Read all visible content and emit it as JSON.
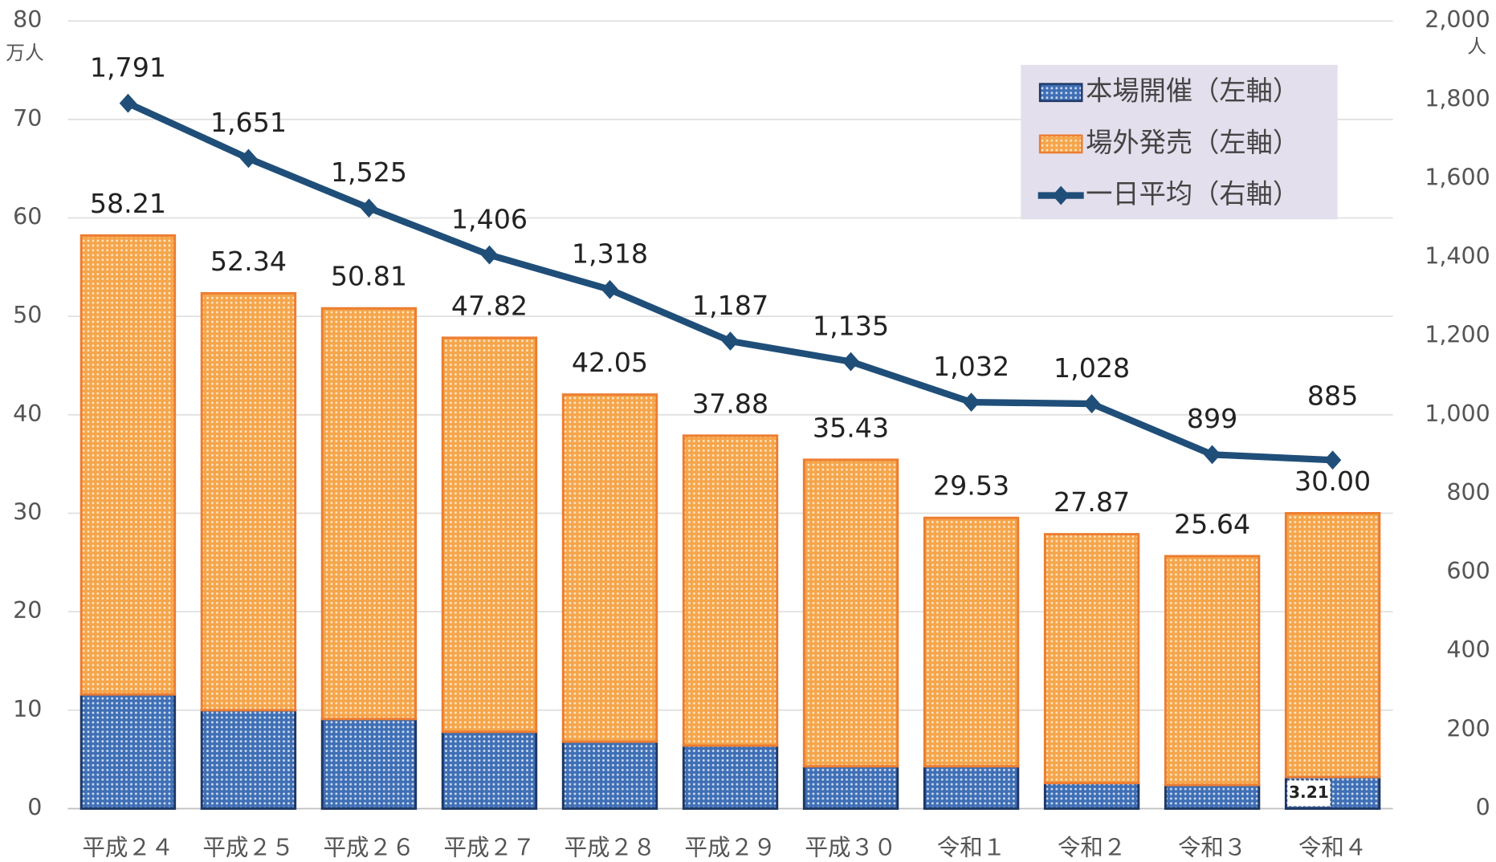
{
  "chart_data": {
    "type": "bar-line",
    "y_unit": "万人",
    "y2_unit": "人",
    "categories": [
      "平成２４",
      "平成２５",
      "平成２６",
      "平成２７",
      "平成２８",
      "平成２９",
      "平成３０",
      "令和１",
      "令和２",
      "令和３",
      "令和４"
    ],
    "series": [
      {
        "name": "本場開催（左軸）",
        "color": "#3f6fb5",
        "values": [
          11.6,
          10.0,
          9.1,
          7.8,
          6.8,
          6.4,
          4.3,
          4.3,
          2.6,
          2.4,
          3.21
        ],
        "value_labels": [
          null,
          null,
          null,
          null,
          null,
          null,
          null,
          null,
          null,
          null,
          "3.21"
        ]
      },
      {
        "name": "場外発売（左軸）",
        "color": "#f5a54a",
        "values": [
          46.61,
          42.34,
          41.71,
          40.02,
          35.25,
          31.48,
          31.13,
          25.23,
          25.27,
          23.24,
          26.79
        ]
      },
      {
        "name": "一日平均（右軸）",
        "color": "#1f4e79",
        "axis": "y2",
        "values": [
          1791,
          1651,
          1525,
          1406,
          1318,
          1187,
          1135,
          1032,
          1028,
          899,
          885
        ],
        "value_labels": [
          "1,791",
          "1,651",
          "1,525",
          "1,406",
          "1,318",
          "1,187",
          "1,135",
          "1,032",
          "1,028",
          "899",
          "885"
        ]
      }
    ],
    "totals": [
      58.21,
      52.34,
      50.81,
      47.82,
      42.05,
      37.88,
      35.43,
      29.53,
      27.87,
      25.64,
      30.0
    ],
    "total_labels": [
      "58.21",
      "52.34",
      "50.81",
      "47.82",
      "42.05",
      "37.88",
      "35.43",
      "29.53",
      "27.87",
      "25.64",
      "30.00"
    ],
    "ylim": [
      0,
      80
    ],
    "yticks": [
      0,
      10,
      20,
      30,
      40,
      50,
      60,
      70,
      80
    ],
    "y2lim": [
      0,
      2000
    ],
    "y2ticks": [
      0,
      200,
      400,
      600,
      800,
      {
        "value": 1000,
        "label": "1,000"
      },
      {
        "value": 1200,
        "label": "1,200"
      },
      {
        "value": 1400,
        "label": "1,400"
      },
      {
        "value": 1600,
        "label": "1,600"
      },
      {
        "value": 1800,
        "label": "1,800"
      },
      {
        "value": 2000,
        "label": "2,000"
      }
    ],
    "grid": true,
    "legend": "upper right"
  }
}
